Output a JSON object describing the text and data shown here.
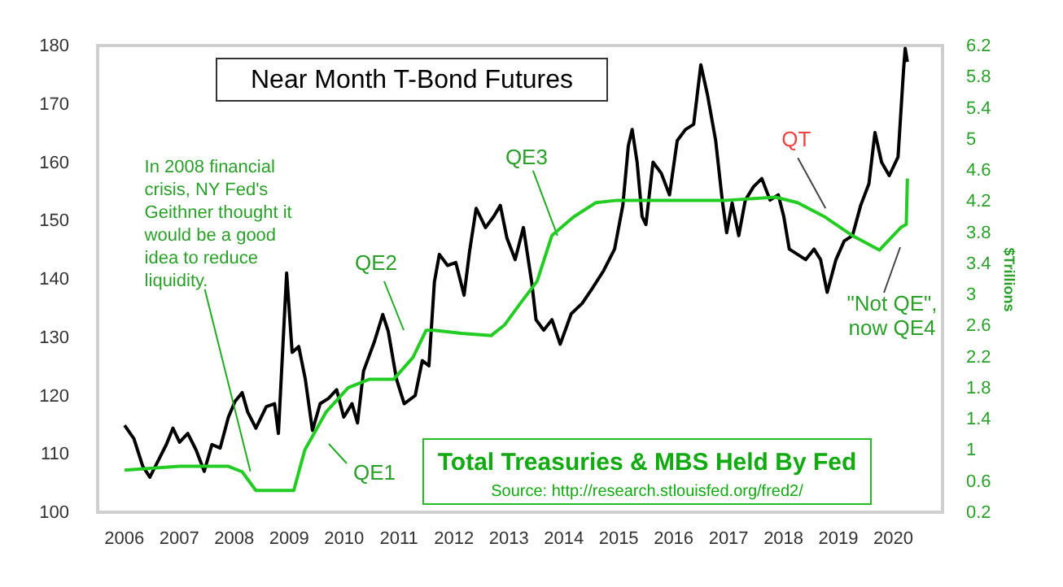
{
  "chart_data": {
    "type": "line",
    "y2label": "$Trillions",
    "xlim": [
      2005.53,
      2020.91
    ],
    "xticks": [
      2006,
      2007,
      2008,
      2009,
      2010,
      2011,
      2012,
      2013,
      2014,
      2015,
      2016,
      2017,
      2018,
      2019,
      2020
    ],
    "ylim": [
      100,
      180
    ],
    "yticks": [
      100,
      110,
      120,
      130,
      140,
      150,
      160,
      170,
      180
    ],
    "y2lim": [
      0.2,
      6.2
    ],
    "y2ticks": [
      0.2,
      0.6,
      1,
      1.4,
      1.8,
      2.2,
      2.6,
      3,
      3.4,
      3.8,
      4.2,
      4.6,
      5,
      5.4,
      5.8,
      6.2
    ],
    "series": [
      {
        "name": "Near Month T-Bond Futures",
        "color": "#000000",
        "x": [
          2006.02,
          2006.19,
          2006.35,
          2006.48,
          2006.63,
          2006.78,
          2006.9,
          2007.02,
          2007.17,
          2007.32,
          2007.47,
          2007.61,
          2007.76,
          2007.91,
          2008.03,
          2008.16,
          2008.26,
          2008.41,
          2008.6,
          2008.75,
          2008.82,
          2008.97,
          2009.07,
          2009.19,
          2009.31,
          2009.44,
          2009.58,
          2009.73,
          2009.88,
          2010.01,
          2010.16,
          2010.26,
          2010.37,
          2010.57,
          2010.72,
          2010.82,
          2010.97,
          2011.11,
          2011.31,
          2011.44,
          2011.56,
          2011.66,
          2011.75,
          2011.9,
          2012.05,
          2012.2,
          2012.3,
          2012.42,
          2012.59,
          2012.74,
          2012.86,
          2012.98,
          2013.13,
          2013.28,
          2013.43,
          2013.51,
          2013.65,
          2013.8,
          2013.95,
          2014.15,
          2014.35,
          2014.55,
          2014.74,
          2014.94,
          2015.09,
          2015.19,
          2015.26,
          2015.35,
          2015.44,
          2015.51,
          2015.64,
          2015.79,
          2015.94,
          2016.08,
          2016.23,
          2016.38,
          2016.51,
          2016.63,
          2016.78,
          2016.9,
          2016.98,
          2017.08,
          2017.2,
          2017.32,
          2017.47,
          2017.62,
          2017.77,
          2017.92,
          2018.02,
          2018.12,
          2018.27,
          2018.42,
          2018.57,
          2018.69,
          2018.81,
          2018.97,
          2019.12,
          2019.27,
          2019.42,
          2019.57,
          2019.68,
          2019.8,
          2019.94,
          2020.1,
          2020.2,
          2020.23,
          2020.27
        ],
        "values": [
          114.9,
          112.6,
          107.9,
          106,
          108.8,
          111.6,
          114.4,
          112,
          113.5,
          110.7,
          107,
          111.6,
          111,
          116.3,
          119,
          120.5,
          117.2,
          114.4,
          118.1,
          118.6,
          113.5,
          141,
          127.4,
          128.4,
          122.8,
          114,
          118.6,
          119.5,
          121,
          116.3,
          118.6,
          115.3,
          124.2,
          129.3,
          133.9,
          131,
          122.8,
          118.6,
          120,
          126,
          125.1,
          139.5,
          144.2,
          142.3,
          142.8,
          137.2,
          144.7,
          152.1,
          148.8,
          150.7,
          152.6,
          147,
          143.3,
          148.8,
          139.5,
          133,
          131.2,
          133,
          128.8,
          134,
          135.8,
          138.6,
          141.4,
          145.1,
          152.6,
          162.8,
          165.6,
          160,
          150.7,
          149.3,
          160,
          158.1,
          154.4,
          163.7,
          165.6,
          166.5,
          176.7,
          171.6,
          163.7,
          153.5,
          147.9,
          153,
          147.4,
          153.5,
          155.8,
          157.2,
          153.5,
          154.4,
          150.7,
          145.1,
          144.2,
          143.3,
          145.1,
          143.3,
          137.7,
          143.3,
          146.5,
          147.4,
          152.6,
          156.3,
          165.1,
          160,
          157.7,
          160.9,
          175.8,
          179.5,
          177.2
        ]
      },
      {
        "name": "Total Treasuries & MBS Held By Fed",
        "color": "#22cc22",
        "axis": "y2",
        "x": [
          2006.02,
          2007.02,
          2007.91,
          2008.16,
          2008.41,
          2009.1,
          2009.3,
          2009.69,
          2010.09,
          2010.48,
          2010.92,
          2011.27,
          2011.51,
          2011.66,
          2012.15,
          2012.69,
          2012.94,
          2013.23,
          2013.53,
          2013.8,
          2014.2,
          2014.6,
          2014.99,
          2015.98,
          2016.98,
          2017.87,
          2018.27,
          2018.76,
          2019.26,
          2019.76,
          2020.15,
          2020.25,
          2020.27
        ],
        "values": [
          0.74,
          0.79,
          0.79,
          0.72,
          0.48,
          0.48,
          1.0,
          1.49,
          1.8,
          1.91,
          1.91,
          2.19,
          2.54,
          2.54,
          2.5,
          2.47,
          2.61,
          2.89,
          3.17,
          3.76,
          4.0,
          4.18,
          4.21,
          4.21,
          4.21,
          4.25,
          4.18,
          4.0,
          3.76,
          3.57,
          3.86,
          3.9,
          4.49
        ]
      }
    ],
    "annotations": [
      {
        "text": "In 2008 financial\ncrisis, NY Fed's\nGeithner thought it\nwould be a good\nidea to reduce\nliquidity.",
        "x": 2008.31,
        "y": 107
      },
      "QE1",
      "QE2",
      {
        "text": "QE3",
        "x": 2013.9,
        "y": 147.4
      },
      {
        "text": "QT",
        "x": 2018.78,
        "y": 152.1
      },
      "\"Not QE\",\nnow QE4",
      "Source: http://research.stlouisfed.org/fred2/"
    ]
  }
}
